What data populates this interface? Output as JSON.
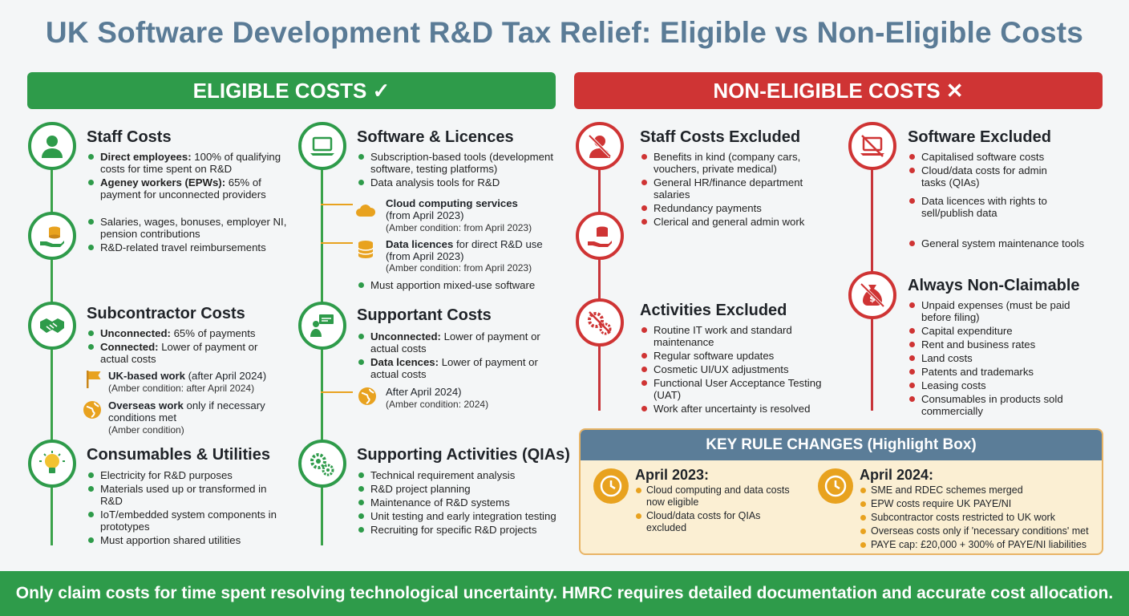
{
  "title": "UK Software Development R&D Tax Relief: Eligible vs Non-Eligible Costs",
  "eligible": {
    "banner": "ELIGIBLE COSTS ✓",
    "staff": {
      "title": "Staff Costs",
      "items": [
        {
          "b": "Direct employees:",
          "t": " 100% of qualifying costs for time spent on R&D"
        },
        {
          "b": "Ageney workers (EPWs):",
          "t": " 65% of payment for unconnected providers"
        },
        {
          "b": "",
          "t": "Salaries, wages, bonuses, employer NI, pension contributions"
        },
        {
          "b": "",
          "t": "R&D-related travel reimbursements"
        }
      ]
    },
    "subcontractor": {
      "title": "Subcontractor Costs",
      "items": [
        {
          "b": "Unconnected:",
          "t": " 65% of payments"
        },
        {
          "b": "Connected:",
          "t": " Lower of payment or actual costs"
        }
      ],
      "uk": {
        "b": "UK-based work",
        "t": " (after April 2024)",
        "amber": "(Amber condition: after April 2024)"
      },
      "overseas": {
        "b": "Overseas work",
        "t": " only if necessary conditions met",
        "amber": "(Amber condition)"
      }
    },
    "consumables": {
      "title": "Consumables & Utilities",
      "items": [
        "Electricity for R&D purposes",
        "Materials used up or transformed in R&D",
        "IoT/embedded system components in prototypes",
        "Must apportion shared utilities"
      ]
    },
    "software": {
      "title": "Software & Licences",
      "items": [
        "Subscription-based tools (development software, testing platforms)",
        "Data analysis tools for R&D"
      ],
      "cloud": {
        "b": "Cloud computing services",
        "t": "(from April 2023)",
        "amber": "(Amber condition: from April 2023)"
      },
      "data": {
        "b": "Data licences",
        "t": " for direct R&D use",
        "t2": "(from April 2023)",
        "amber": "(Amber condition: from April 2023)"
      },
      "last": "Must apportion mixed-use software"
    },
    "supportant": {
      "title": "Supportant Costs",
      "items": [
        {
          "b": "Unconnected:",
          "t": " Lower of payment or actual costs"
        },
        {
          "b": "Data lcences:",
          "t": " Lower of payment or actual costs"
        }
      ],
      "after": {
        "t": "After April 2024)",
        "amber": "(Amber condition: 2024)"
      }
    },
    "supporting": {
      "title": "Supporting Activities (QIAs)",
      "items": [
        "Technical requirement analysis",
        "R&D project planning",
        "Maintenance of R&D systems",
        "Unit testing and early integration testing",
        "Recruiting for specific R&D projects"
      ]
    }
  },
  "noneligible": {
    "banner": "NON-ELIGIBLE COSTS ✕",
    "staff": {
      "title": "Staff Costs Excluded",
      "items": [
        "Benefits in kind (company cars, vouchers, private medical)",
        "General HR/finance department salaries",
        "Redundancy payments",
        "Clerical and general admin work"
      ]
    },
    "activities": {
      "title": "Activities Excluded",
      "items": [
        "Routine IT work and standard maintenance",
        "Regular software updates",
        "Cosmetic UI/UX adjustments",
        "Functional User Acceptance Testing (UAT)",
        "Work after uncertainty is resolved"
      ]
    },
    "software": {
      "title": "Software Excluded",
      "items": [
        "Capitalised software costs",
        "Cloud/data costs for admin tasks (QIAs)",
        "Data licences with rights to sell/publish data",
        "General system maintenance tools"
      ]
    },
    "always": {
      "title": "Always Non-Claimable",
      "items": [
        "Unpaid expenses (must be paid before filing)",
        "Capital expenditure",
        "Rent and business rates",
        "Land costs",
        "Patents and trademarks",
        "Leasing costs",
        "Consumables in products sold commercially"
      ]
    }
  },
  "key": {
    "title": "KEY RULE CHANGES (Highlight Box)",
    "april2023": {
      "title": "April 2023:",
      "items": [
        "Cloud computing and data costs now eligible",
        "Cloud/data costs for QIAs excluded"
      ]
    },
    "april2024": {
      "title": "April 2024:",
      "items": [
        "SME and RDEC schemes merged",
        "EPW costs require UK PAYE/NI",
        "Subcontractor costs restricted to UK work",
        "Overseas costs only if 'necessary conditions' met",
        "PAYE cap: £20,000 + 300% of PAYE/NI liabilities"
      ]
    }
  },
  "footer": "Only claim costs for time spent resolving technological uncertainty. HMRC requires detailed documentation and accurate cost allocation.",
  "colors": {
    "green": "#2e9b4a",
    "red": "#cf3434",
    "amber": "#e8a21f",
    "slate": "#5b7d98"
  },
  "icons": [
    "person-icon",
    "money-hand-icon",
    "handshake-icon",
    "lightbulb-icon",
    "laptop-icon",
    "cloud-icon",
    "database-icon",
    "presenter-icon",
    "globe-icon",
    "gears-icon",
    "flag-icon",
    "clock-icon",
    "money-bag-icon"
  ]
}
